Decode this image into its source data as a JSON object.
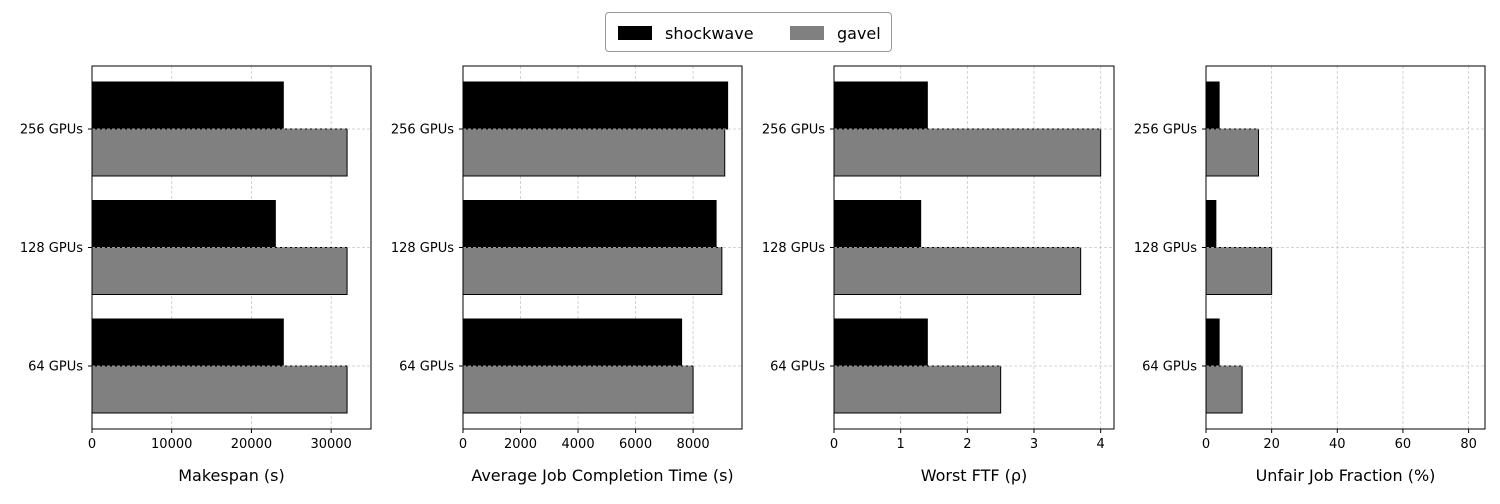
{
  "legend": {
    "items": [
      {
        "label": "shockwave",
        "color": "#000000"
      },
      {
        "label": "gavel",
        "color": "#808080"
      }
    ],
    "placement": "top-center"
  },
  "chart_data": [
    {
      "type": "bar",
      "orientation": "horizontal",
      "categories": [
        "64 GPUs",
        "128 GPUs",
        "256 GPUs"
      ],
      "series": [
        {
          "name": "shockwave",
          "values": [
            24000,
            23000,
            24000
          ]
        },
        {
          "name": "gavel",
          "values": [
            32000,
            32000,
            32000
          ]
        }
      ],
      "xlabel": "Makespan (s)",
      "xlim": [
        0,
        35000
      ],
      "xticks": [
        0,
        10000,
        20000,
        30000
      ],
      "grid": true
    },
    {
      "type": "bar",
      "orientation": "horizontal",
      "categories": [
        "64 GPUs",
        "128 GPUs",
        "256 GPUs"
      ],
      "series": [
        {
          "name": "shockwave",
          "values": [
            7600,
            8800,
            9200
          ]
        },
        {
          "name": "gavel",
          "values": [
            8000,
            9000,
            9100
          ]
        }
      ],
      "xlabel": "Average Job Completion Time (s)",
      "xlim": [
        0,
        9700
      ],
      "xticks": [
        0,
        2000,
        4000,
        6000,
        8000
      ],
      "grid": true
    },
    {
      "type": "bar",
      "orientation": "horizontal",
      "categories": [
        "64 GPUs",
        "128 GPUs",
        "256 GPUs"
      ],
      "series": [
        {
          "name": "shockwave",
          "values": [
            1.4,
            1.3,
            1.4
          ]
        },
        {
          "name": "gavel",
          "values": [
            2.5,
            3.7,
            4.0
          ]
        }
      ],
      "xlabel": "Worst FTF (ρ)",
      "xlim": [
        0,
        4.2
      ],
      "xticks": [
        0,
        1,
        2,
        3,
        4
      ],
      "grid": true
    },
    {
      "type": "bar",
      "orientation": "horizontal",
      "categories": [
        "64 GPUs",
        "128 GPUs",
        "256 GPUs"
      ],
      "series": [
        {
          "name": "shockwave",
          "values": [
            4,
            3,
            4
          ]
        },
        {
          "name": "gavel",
          "values": [
            11,
            20,
            16
          ]
        }
      ],
      "xlabel": "Unfair Job Fraction (%)",
      "xlim": [
        0,
        85
      ],
      "xticks": [
        0,
        20,
        40,
        60,
        80
      ],
      "grid": true
    }
  ]
}
